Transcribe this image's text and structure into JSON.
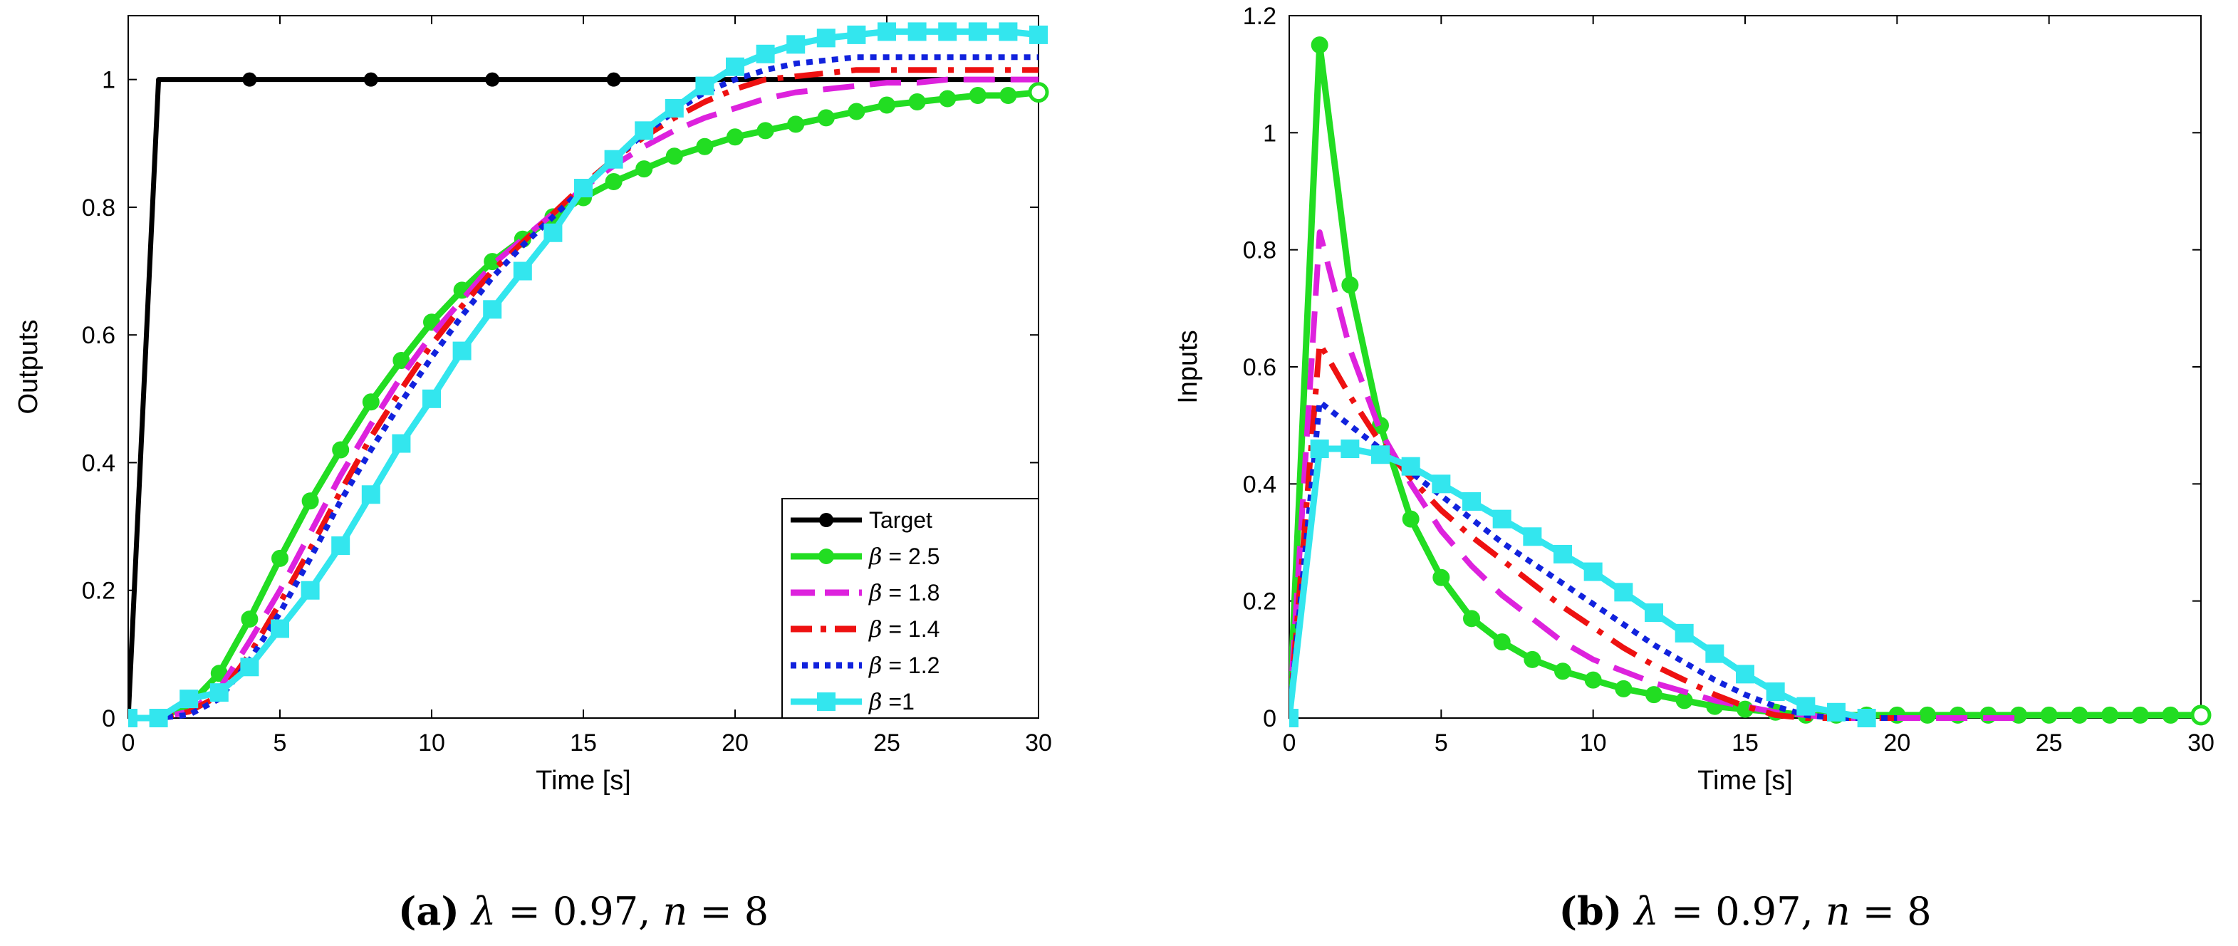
{
  "chart_data": [
    {
      "type": "line",
      "panel": "a",
      "caption": {
        "label": "(a)",
        "lambda_symbol": "λ",
        "lambda_eq": " = 0.97, ",
        "n_symbol": "n",
        "n_eq": " = 8"
      },
      "xlabel": "Time [s]",
      "ylabel": "Outputs",
      "xlim": [
        0,
        30
      ],
      "ylim": [
        0,
        1.1
      ],
      "xticks": [
        0,
        5,
        10,
        15,
        20,
        25,
        30
      ],
      "yticks": [
        0,
        0.2,
        0.4,
        0.6,
        0.8,
        1
      ],
      "xtick_labels": [
        "0",
        "5",
        "10",
        "15",
        "20",
        "25",
        "30"
      ],
      "ytick_labels": [
        "0",
        "0.2",
        "0.4",
        "0.6",
        "0.8",
        "1"
      ],
      "legend": {
        "location": "bottom-right"
      },
      "series": [
        {
          "name": "Target",
          "symbol": "",
          "label": "Target",
          "color": "#000000",
          "style": "solid",
          "marker": "dot",
          "x": [
            0,
            1,
            4,
            8,
            12,
            16,
            20,
            24,
            28,
            30
          ],
          "y": [
            0,
            1,
            1,
            1,
            1,
            1,
            1,
            1,
            1,
            1
          ],
          "marker_x": [
            0,
            4,
            8,
            12,
            16
          ]
        },
        {
          "name": "β = 2.5",
          "symbol": "β",
          "label": " = 2.5",
          "color": "#22dd22",
          "style": "solid",
          "marker": "circle",
          "x": [
            0,
            1,
            2,
            3,
            4,
            5,
            6,
            7,
            8,
            9,
            10,
            11,
            12,
            13,
            14,
            15,
            16,
            17,
            18,
            19,
            20,
            21,
            22,
            23,
            24,
            25,
            26,
            27,
            28,
            29,
            30
          ],
          "y": [
            0,
            0,
            0.02,
            0.07,
            0.155,
            0.25,
            0.34,
            0.42,
            0.495,
            0.56,
            0.62,
            0.67,
            0.715,
            0.75,
            0.785,
            0.815,
            0.84,
            0.86,
            0.88,
            0.895,
            0.91,
            0.92,
            0.93,
            0.94,
            0.95,
            0.96,
            0.965,
            0.97,
            0.975,
            0.975,
            0.98
          ]
        },
        {
          "name": "β = 1.8",
          "symbol": "β",
          "label": " = 1.8",
          "color": "#dd22dd",
          "style": "dash",
          "marker": "none",
          "x": [
            0,
            1,
            2,
            3,
            4,
            5,
            6,
            7,
            8,
            9,
            10,
            11,
            12,
            13,
            14,
            15,
            16,
            17,
            18,
            19,
            20,
            21,
            22,
            23,
            24,
            25,
            26,
            27,
            28,
            29,
            30
          ],
          "y": [
            0,
            0,
            0.01,
            0.045,
            0.12,
            0.2,
            0.29,
            0.38,
            0.46,
            0.535,
            0.6,
            0.655,
            0.71,
            0.75,
            0.79,
            0.83,
            0.865,
            0.895,
            0.92,
            0.94,
            0.955,
            0.97,
            0.98,
            0.985,
            0.99,
            0.995,
            0.995,
            1,
            1,
            1,
            1
          ]
        },
        {
          "name": "β = 1.4",
          "symbol": "β",
          "label": " = 1.4",
          "color": "#ee1111",
          "style": "dashdot",
          "marker": "none",
          "x": [
            0,
            1,
            2,
            3,
            4,
            5,
            6,
            7,
            8,
            9,
            10,
            11,
            12,
            13,
            14,
            15,
            16,
            17,
            18,
            19,
            20,
            21,
            22,
            23,
            24,
            25,
            26,
            27,
            28,
            29,
            30
          ],
          "y": [
            0,
            0,
            0.01,
            0.035,
            0.1,
            0.18,
            0.265,
            0.355,
            0.44,
            0.515,
            0.585,
            0.645,
            0.7,
            0.745,
            0.79,
            0.835,
            0.875,
            0.91,
            0.94,
            0.965,
            0.985,
            1,
            1.005,
            1.01,
            1.015,
            1.015,
            1.015,
            1.015,
            1.015,
            1.015,
            1.015
          ]
        },
        {
          "name": "β = 1.2",
          "symbol": "β",
          "label": " = 1.2",
          "color": "#1122dd",
          "style": "dot",
          "marker": "none",
          "x": [
            0,
            1,
            2,
            3,
            4,
            5,
            6,
            7,
            8,
            9,
            10,
            11,
            12,
            13,
            14,
            15,
            16,
            17,
            18,
            19,
            20,
            21,
            22,
            23,
            24,
            25,
            26,
            27,
            28,
            29,
            30
          ],
          "y": [
            0,
            0,
            0.005,
            0.03,
            0.09,
            0.165,
            0.25,
            0.34,
            0.42,
            0.495,
            0.565,
            0.63,
            0.69,
            0.74,
            0.785,
            0.83,
            0.875,
            0.915,
            0.95,
            0.98,
            1.0,
            1.015,
            1.025,
            1.03,
            1.035,
            1.035,
            1.035,
            1.035,
            1.035,
            1.035,
            1.035
          ]
        },
        {
          "name": "β =1",
          "symbol": "β",
          "label": " =1",
          "color": "#33e6ee",
          "style": "solid",
          "marker": "square",
          "x": [
            0,
            1,
            2,
            3,
            4,
            5,
            6,
            7,
            8,
            9,
            10,
            11,
            12,
            13,
            14,
            15,
            16,
            17,
            18,
            19,
            20,
            21,
            22,
            23,
            24,
            25,
            26,
            27,
            28,
            29,
            30
          ],
          "y": [
            0,
            0,
            0.03,
            0.04,
            0.08,
            0.14,
            0.2,
            0.27,
            0.35,
            0.43,
            0.5,
            0.575,
            0.64,
            0.7,
            0.76,
            0.83,
            0.875,
            0.92,
            0.955,
            0.99,
            1.02,
            1.04,
            1.055,
            1.065,
            1.07,
            1.075,
            1.075,
            1.075,
            1.075,
            1.075,
            1.07
          ]
        }
      ]
    },
    {
      "type": "line",
      "panel": "b",
      "caption": {
        "label": "(b)",
        "lambda_symbol": "λ",
        "lambda_eq": " = 0.97, ",
        "n_symbol": "n",
        "n_eq": " = 8"
      },
      "xlabel": "Time [s]",
      "ylabel": "Inputs",
      "xlim": [
        0,
        30
      ],
      "ylim": [
        0,
        1.2
      ],
      "xticks": [
        0,
        5,
        10,
        15,
        20,
        25,
        30
      ],
      "yticks": [
        0,
        0.2,
        0.4,
        0.6,
        0.8,
        1,
        1.2
      ],
      "xtick_labels": [
        "0",
        "5",
        "10",
        "15",
        "20",
        "25",
        "30"
      ],
      "ytick_labels": [
        "0",
        "0.2",
        "0.4",
        "0.6",
        "0.8",
        "1",
        "1.2"
      ],
      "series": [
        {
          "name": "β = 2.5",
          "color": "#22dd22",
          "style": "solid",
          "marker": "circle",
          "x": [
            0,
            1,
            2,
            3,
            4,
            5,
            6,
            7,
            8,
            9,
            10,
            11,
            12,
            13,
            14,
            15,
            16,
            17,
            18,
            19,
            20,
            21,
            22,
            23,
            24,
            25,
            26,
            27,
            28,
            29,
            30
          ],
          "y": [
            0,
            1.15,
            0.74,
            0.5,
            0.34,
            0.24,
            0.17,
            0.13,
            0.1,
            0.08,
            0.065,
            0.05,
            0.04,
            0.03,
            0.02,
            0.015,
            0.01,
            0.005,
            0.005,
            0.005,
            0.005,
            0.005,
            0.005,
            0.005,
            0.005,
            0.005,
            0.005,
            0.005,
            0.005,
            0.005,
            0.005
          ]
        },
        {
          "name": "β = 1.8",
          "color": "#dd22dd",
          "style": "dash",
          "marker": "none",
          "x": [
            0,
            1,
            2,
            3,
            4,
            5,
            6,
            7,
            8,
            9,
            10,
            11,
            12,
            13,
            14,
            15,
            16,
            17,
            18,
            19,
            20,
            21,
            22,
            23,
            24
          ],
          "y": [
            0,
            0.83,
            0.63,
            0.49,
            0.4,
            0.32,
            0.26,
            0.21,
            0.17,
            0.13,
            0.1,
            0.08,
            0.06,
            0.045,
            0.03,
            0.02,
            0.01,
            0.005,
            0,
            0,
            0,
            0,
            0,
            0,
            0
          ]
        },
        {
          "name": "β = 1.4",
          "color": "#ee1111",
          "style": "dashdot",
          "marker": "none",
          "x": [
            0,
            1,
            2,
            3,
            4,
            5,
            6,
            7,
            8,
            9,
            10,
            11,
            12,
            13,
            14,
            15,
            16,
            17,
            18,
            19,
            20
          ],
          "y": [
            0,
            0.64,
            0.55,
            0.47,
            0.41,
            0.355,
            0.31,
            0.27,
            0.23,
            0.19,
            0.155,
            0.12,
            0.09,
            0.065,
            0.04,
            0.02,
            0.005,
            0,
            0,
            0,
            0
          ]
        },
        {
          "name": "β = 1.2",
          "color": "#1122dd",
          "style": "dot",
          "marker": "none",
          "x": [
            0,
            1,
            2,
            3,
            4,
            5,
            6,
            7,
            8,
            9,
            10,
            11,
            12,
            13,
            14,
            15,
            16,
            17,
            18,
            19,
            20
          ],
          "y": [
            0,
            0.54,
            0.5,
            0.46,
            0.42,
            0.38,
            0.34,
            0.3,
            0.265,
            0.23,
            0.195,
            0.16,
            0.125,
            0.095,
            0.065,
            0.04,
            0.02,
            0.005,
            0,
            0,
            0
          ]
        },
        {
          "name": "β =1",
          "color": "#33e6ee",
          "style": "solid",
          "marker": "square",
          "x": [
            0,
            1,
            2,
            3,
            4,
            5,
            6,
            7,
            8,
            9,
            10,
            11,
            12,
            13,
            14,
            15,
            16,
            17,
            18,
            19
          ],
          "y": [
            0,
            0.46,
            0.46,
            0.45,
            0.43,
            0.4,
            0.37,
            0.34,
            0.31,
            0.28,
            0.25,
            0.215,
            0.18,
            0.145,
            0.11,
            0.075,
            0.045,
            0.02,
            0.01,
            0
          ]
        }
      ]
    }
  ]
}
